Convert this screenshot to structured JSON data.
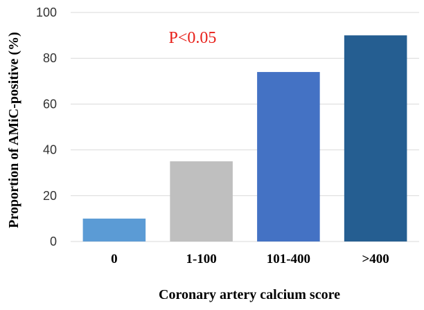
{
  "chart_data": {
    "type": "bar",
    "title": "",
    "xlabel": "Coronary artery calcium score",
    "ylabel": "Proportion of AMiC-positive (%)",
    "categories": [
      "0",
      "1-100",
      "101-400",
      ">400"
    ],
    "values": [
      10,
      35,
      74,
      90
    ],
    "colors": [
      "#5b9bd5",
      "#bfbfbf",
      "#4472c4",
      "#255e91"
    ],
    "ylim": [
      0,
      100
    ],
    "yticks": [
      "0",
      "20",
      "40",
      "60",
      "80",
      "100"
    ],
    "grid": true,
    "annotation": "P<0.05",
    "annotation_color": "#e8201a"
  }
}
